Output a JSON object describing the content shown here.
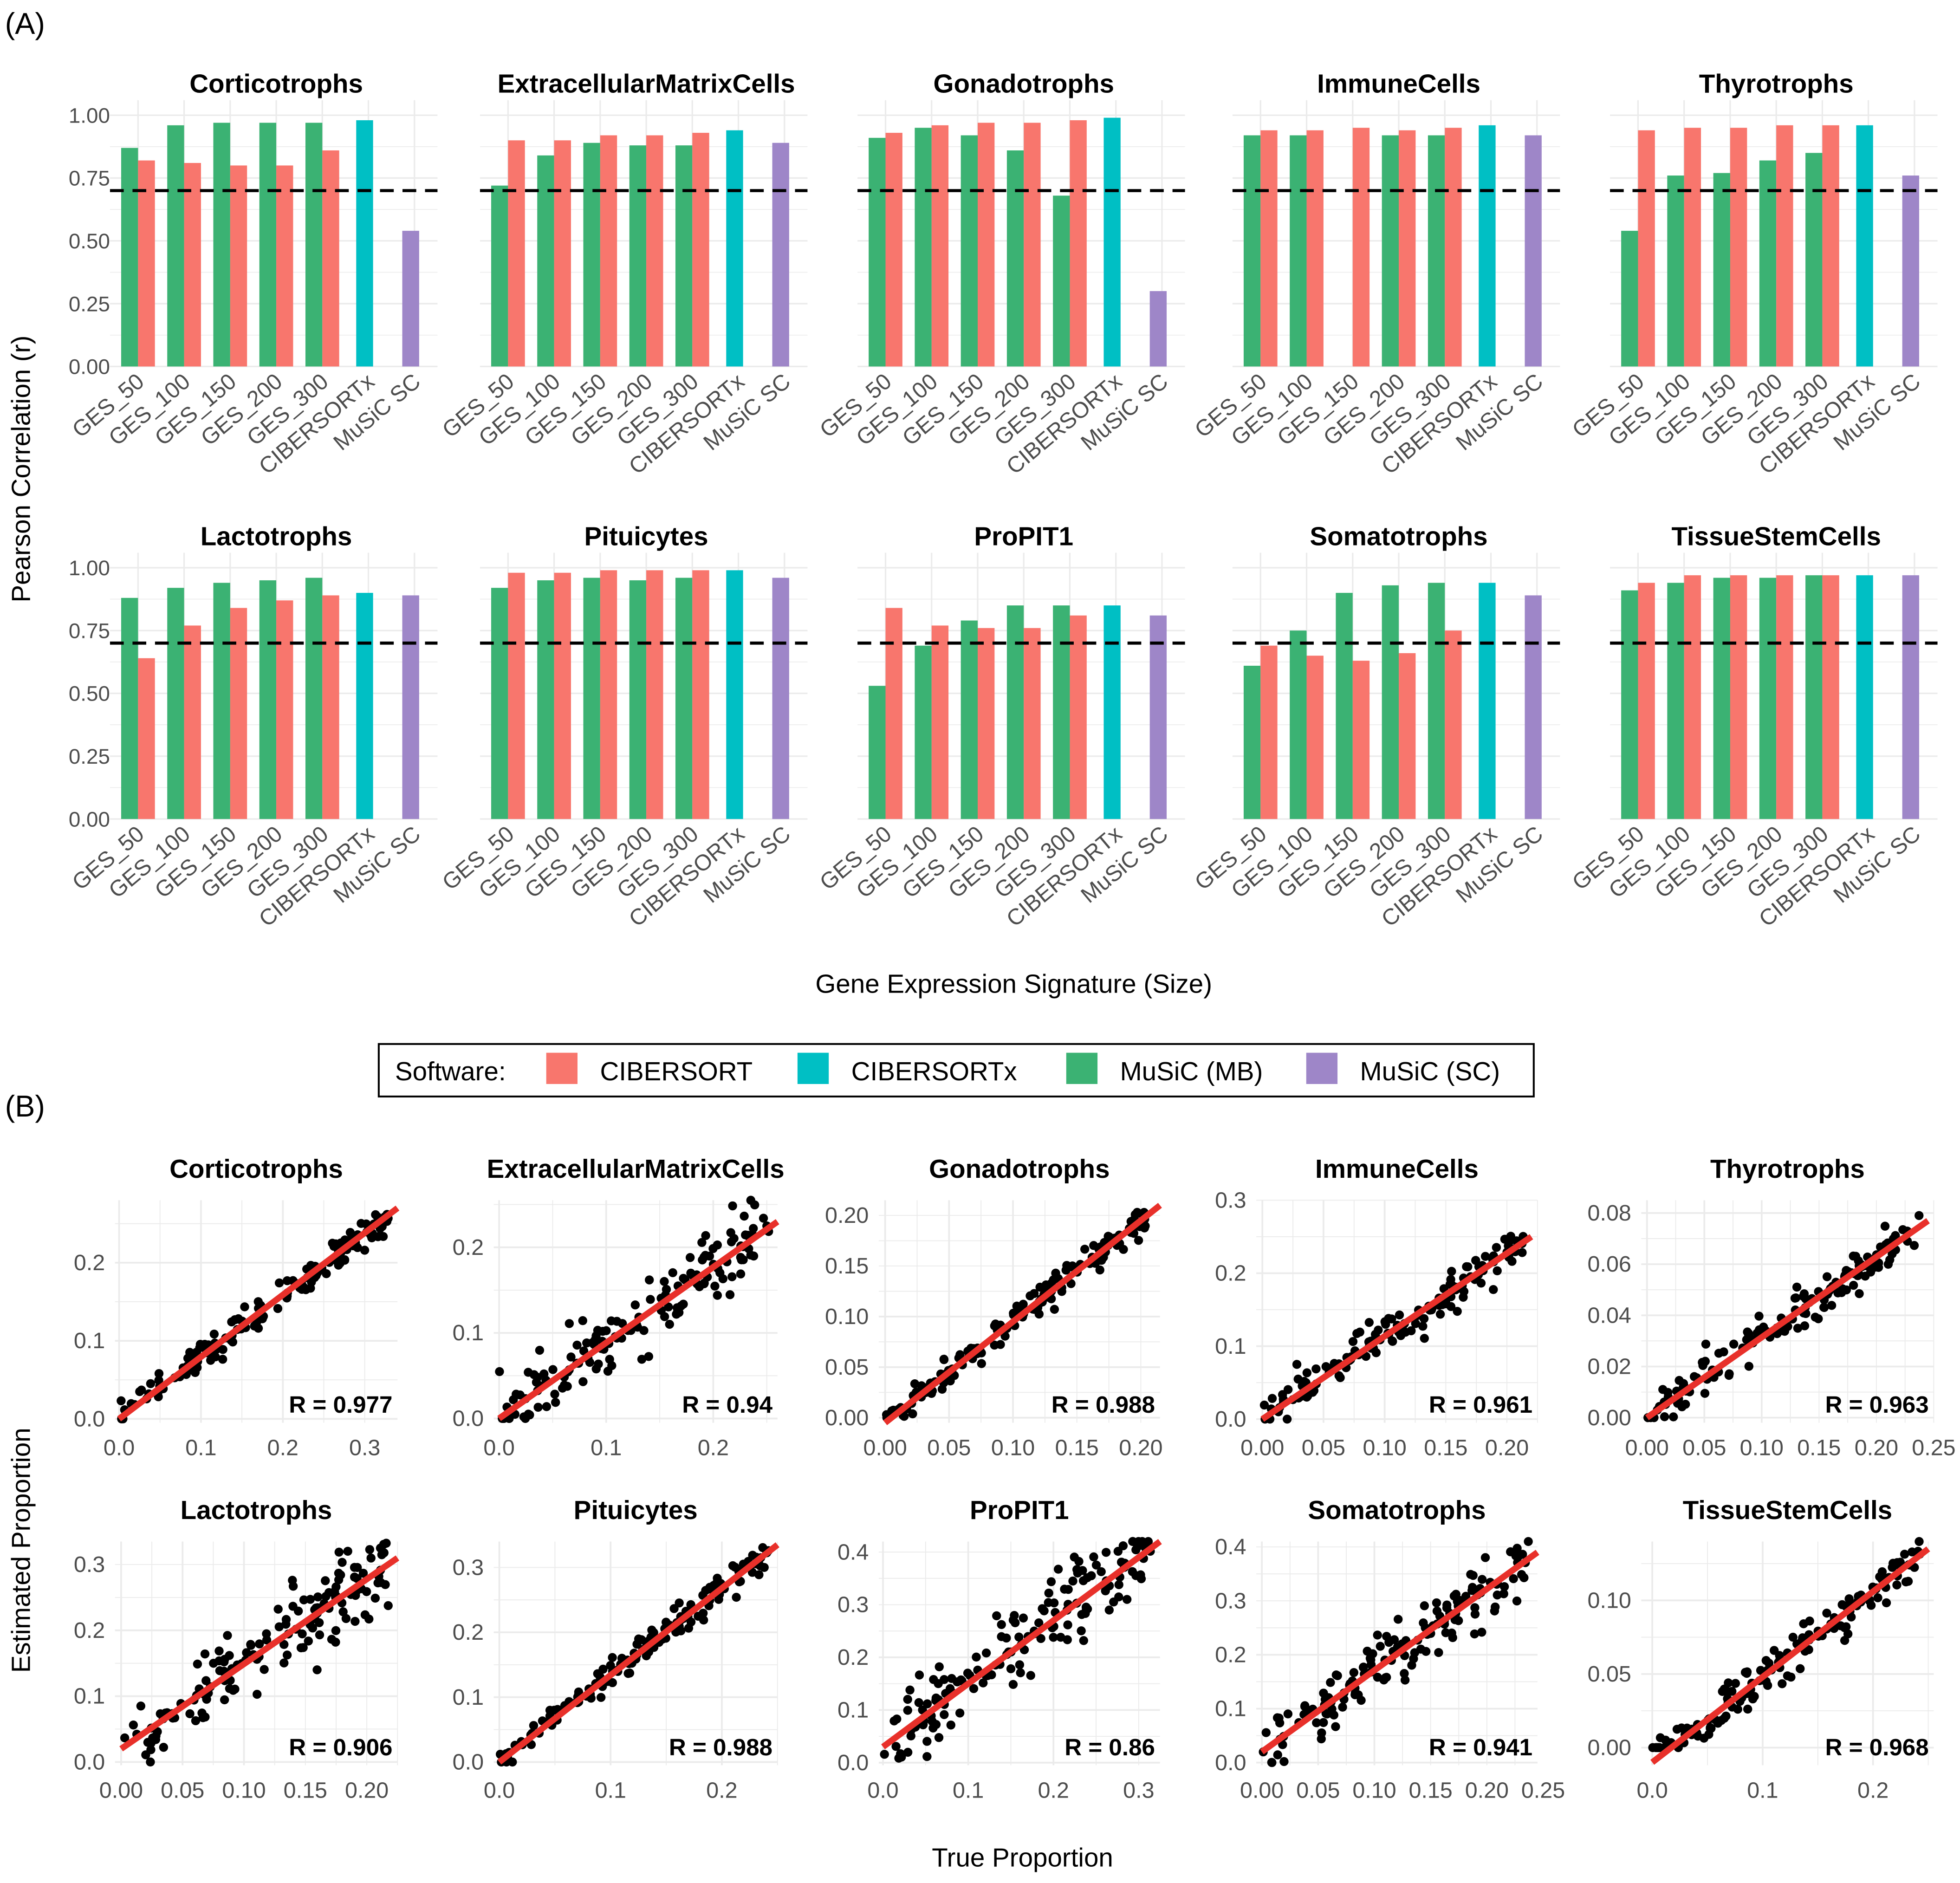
{
  "panel_labels": {
    "a": "(A)",
    "b": "(B)"
  },
  "legend": {
    "title": "Software:",
    "items": [
      {
        "label": "CIBERSORT",
        "color": "#F8766D"
      },
      {
        "label": "CIBERSORTx",
        "color": "#00BFC4"
      },
      {
        "label": "MuSiC (MB)",
        "color": "#3BB273"
      },
      {
        "label": "MuSiC (SC)",
        "color": "#9E86C8"
      }
    ]
  },
  "chart_data": [
    {
      "type": "bar",
      "title": "Panel A",
      "ylabel": "Pearson Correlation (r)",
      "xlabel": "Gene Expression Signature (Size)",
      "ylim": [
        0,
        1
      ],
      "yticks": [
        "0.00",
        "0.25",
        "0.50",
        "0.75",
        "1.00"
      ],
      "threshold": 0.7,
      "categories": [
        "GES_50",
        "GES_100",
        "GES_150",
        "GES_200",
        "GES_300",
        "CIBERSORTx",
        "MuSiC SC"
      ],
      "facets": [
        {
          "title": "Corticotrophs",
          "musicMB": [
            0.87,
            0.96,
            0.97,
            0.97,
            0.97
          ],
          "cibersort": [
            0.82,
            0.81,
            0.8,
            0.8,
            0.86
          ],
          "cibersortx": 0.98,
          "musicSC": 0.54
        },
        {
          "title": "ExtracellularMatrixCells",
          "musicMB": [
            0.72,
            0.84,
            0.89,
            0.88,
            0.88
          ],
          "cibersort": [
            0.9,
            0.9,
            0.92,
            0.92,
            0.93
          ],
          "cibersortx": 0.94,
          "musicSC": 0.89
        },
        {
          "title": "Gonadotrophs",
          "musicMB": [
            0.91,
            0.95,
            0.92,
            0.86,
            0.68
          ],
          "cibersort": [
            0.93,
            0.96,
            0.97,
            0.97,
            0.98
          ],
          "cibersortx": 0.99,
          "musicSC": 0.3
        },
        {
          "title": "ImmuneCells",
          "musicMB": [
            0.92,
            0.92,
            null,
            0.92,
            0.92
          ],
          "cibersort": [
            0.94,
            0.94,
            0.95,
            0.94,
            0.95
          ],
          "cibersortx": 0.96,
          "musicSC": 0.92
        },
        {
          "title": "Thyrotrophs",
          "musicMB": [
            0.54,
            0.76,
            0.77,
            0.82,
            0.85
          ],
          "cibersort": [
            0.94,
            0.95,
            0.95,
            0.96,
            0.96
          ],
          "cibersortx": 0.96,
          "musicSC": 0.76
        },
        {
          "title": "Lactotrophs",
          "musicMB": [
            0.88,
            0.92,
            0.94,
            0.95,
            0.96
          ],
          "cibersort": [
            0.64,
            0.77,
            0.84,
            0.87,
            0.89
          ],
          "cibersortx": 0.9,
          "musicSC": 0.89
        },
        {
          "title": "Pituicytes",
          "musicMB": [
            0.92,
            0.95,
            0.96,
            0.95,
            0.96
          ],
          "cibersort": [
            0.98,
            0.98,
            0.99,
            0.99,
            0.99
          ],
          "cibersortx": 0.99,
          "musicSC": 0.96
        },
        {
          "title": "ProPIT1",
          "musicMB": [
            0.53,
            0.69,
            0.79,
            0.85,
            0.85
          ],
          "cibersort": [
            0.84,
            0.77,
            0.76,
            0.76,
            0.81
          ],
          "cibersortx": 0.85,
          "musicSC": 0.81
        },
        {
          "title": "Somatotrophs",
          "musicMB": [
            0.61,
            0.75,
            0.9,
            0.93,
            0.94
          ],
          "cibersort": [
            0.69,
            0.65,
            0.63,
            0.66,
            0.75
          ],
          "cibersortx": 0.94,
          "musicSC": 0.89
        },
        {
          "title": "TissueStemCells",
          "musicMB": [
            0.91,
            0.94,
            0.96,
            0.96,
            0.97
          ],
          "cibersort": [
            0.94,
            0.97,
            0.97,
            0.97,
            0.97
          ],
          "cibersortx": 0.97,
          "musicSC": 0.97
        }
      ]
    },
    {
      "type": "scatter",
      "title": "Panel B",
      "xlabel": "True Proportion",
      "ylabel": "Estimated Proportion",
      "facets": [
        {
          "title": "Corticotrophs",
          "r_label": "R = 0.977",
          "xlim": [
            -0.005,
            0.34
          ],
          "ylim": [
            -0.005,
            0.28
          ],
          "xticks": [
            0,
            0.1,
            0.2,
            0.3
          ],
          "xtick_labels": [
            "0.0",
            "0.1",
            "0.2",
            "0.3"
          ],
          "yticks": [
            0,
            0.1,
            0.2
          ],
          "ytick_labels": [
            "0.0",
            "0.1",
            "0.2"
          ],
          "fit": [
            [
              0,
              0
            ],
            [
              0.34,
              0.27
            ]
          ],
          "noise": 0.01
        },
        {
          "title": "ExtracellularMatrixCells",
          "r_label": "R = 0.94",
          "xlim": [
            -0.005,
            0.26
          ],
          "ylim": [
            -0.005,
            0.255
          ],
          "xticks": [
            0,
            0.1,
            0.2
          ],
          "xtick_labels": [
            "0.0",
            "0.1",
            "0.2"
          ],
          "yticks": [
            0,
            0.1,
            0.2
          ],
          "ytick_labels": [
            "0.0",
            "0.1",
            "0.2"
          ],
          "fit": [
            [
              0,
              0
            ],
            [
              0.26,
              0.23
            ]
          ],
          "noise": 0.02
        },
        {
          "title": "Gonadotrophs",
          "r_label": "R = 0.988",
          "xlim": [
            -0.005,
            0.215
          ],
          "ylim": [
            -0.005,
            0.215
          ],
          "xticks": [
            0,
            0.05,
            0.1,
            0.15,
            0.2
          ],
          "xtick_labels": [
            "0.00",
            "0.05",
            "0.10",
            "0.15",
            "0.20"
          ],
          "yticks": [
            0,
            0.05,
            0.1,
            0.15,
            0.2
          ],
          "ytick_labels": [
            "0.00",
            "0.05",
            "0.10",
            "0.15",
            "0.20"
          ],
          "fit": [
            [
              0,
              -0.005
            ],
            [
              0.215,
              0.21
            ]
          ],
          "noise": 0.007
        },
        {
          "title": "ImmuneCells",
          "r_label": "R = 0.961",
          "xlim": [
            -0.005,
            0.225
          ],
          "ylim": [
            -0.005,
            0.3
          ],
          "xticks": [
            0,
            0.05,
            0.1,
            0.15,
            0.2
          ],
          "xtick_labels": [
            "0.00",
            "0.05",
            "0.10",
            "0.15",
            "0.20"
          ],
          "yticks": [
            0,
            0.1,
            0.2,
            0.3
          ],
          "ytick_labels": [
            "0.0",
            "0.1",
            "0.2",
            "0.3"
          ],
          "fit": [
            [
              0,
              0
            ],
            [
              0.22,
              0.25
            ]
          ],
          "noise": 0.014
        },
        {
          "title": "Thyrotrophs",
          "r_label": "R = 0.963",
          "xlim": [
            -0.005,
            0.25
          ],
          "ylim": [
            -0.002,
            0.085
          ],
          "xticks": [
            0,
            0.05,
            0.1,
            0.15,
            0.2,
            0.25
          ],
          "xtick_labels": [
            "0.00",
            "0.05",
            "0.10",
            "0.15",
            "0.20",
            "0.25"
          ],
          "yticks": [
            0,
            0.02,
            0.04,
            0.06,
            0.08
          ],
          "ytick_labels": [
            "0.00",
            "0.02",
            "0.04",
            "0.06",
            "0.08"
          ],
          "fit": [
            [
              0,
              0
            ],
            [
              0.245,
              0.077
            ]
          ],
          "noise": 0.004
        },
        {
          "title": "Lactotrophs",
          "r_label": "R = 0.906",
          "xlim": [
            -0.005,
            0.225
          ],
          "ylim": [
            -0.005,
            0.335
          ],
          "xticks": [
            0,
            0.05,
            0.1,
            0.15,
            0.2
          ],
          "xtick_labels": [
            "0.00",
            "0.05",
            "0.10",
            "0.15",
            "0.20"
          ],
          "yticks": [
            0,
            0.1,
            0.2,
            0.3
          ],
          "ytick_labels": [
            "0.0",
            "0.1",
            "0.2",
            "0.3"
          ],
          "fit": [
            [
              0,
              0.02
            ],
            [
              0.225,
              0.31
            ]
          ],
          "noise": 0.03
        },
        {
          "title": "Pituicytes",
          "r_label": "R = 0.988",
          "xlim": [
            -0.005,
            0.25
          ],
          "ylim": [
            -0.005,
            0.34
          ],
          "xticks": [
            0,
            0.1,
            0.2
          ],
          "xtick_labels": [
            "0.0",
            "0.1",
            "0.2"
          ],
          "yticks": [
            0,
            0.1,
            0.2,
            0.3
          ],
          "ytick_labels": [
            "0.0",
            "0.1",
            "0.2",
            "0.3"
          ],
          "fit": [
            [
              0,
              0
            ],
            [
              0.25,
              0.335
            ]
          ],
          "noise": 0.012
        },
        {
          "title": "ProPIT1",
          "r_label": "R = 0.86",
          "xlim": [
            -0.005,
            0.325
          ],
          "ylim": [
            -0.005,
            0.42
          ],
          "xticks": [
            0,
            0.1,
            0.2,
            0.3
          ],
          "xtick_labels": [
            "0.0",
            "0.1",
            "0.2",
            "0.3"
          ],
          "yticks": [
            0,
            0.1,
            0.2,
            0.3,
            0.4
          ],
          "ytick_labels": [
            "0.0",
            "0.1",
            "0.2",
            "0.3",
            "0.4"
          ],
          "fit": [
            [
              0,
              0.03
            ],
            [
              0.325,
              0.42
            ]
          ],
          "noise": 0.04
        },
        {
          "title": "Somatotrophs",
          "r_label": "R = 0.941",
          "xlim": [
            -0.005,
            0.245
          ],
          "ylim": [
            -0.005,
            0.41
          ],
          "xticks": [
            0,
            0.05,
            0.1,
            0.15,
            0.2,
            0.25
          ],
          "xtick_labels": [
            "0.00",
            "0.05",
            "0.10",
            "0.15",
            "0.20",
            "0.25"
          ],
          "yticks": [
            0,
            0.1,
            0.2,
            0.3,
            0.4
          ],
          "ytick_labels": [
            "0.0",
            "0.1",
            "0.2",
            "0.3",
            "0.4"
          ],
          "fit": [
            [
              0,
              0.02
            ],
            [
              0.245,
              0.39
            ]
          ],
          "noise": 0.028
        },
        {
          "title": "TissueStemCells",
          "r_label": "R = 0.968",
          "xlim": [
            -0.01,
            0.255
          ],
          "ylim": [
            -0.012,
            0.14
          ],
          "xticks": [
            0,
            0.1,
            0.2
          ],
          "xtick_labels": [
            "0.0",
            "0.1",
            "0.2"
          ],
          "yticks": [
            0,
            0.05,
            0.1
          ],
          "ytick_labels": [
            "0.00",
            "0.05",
            "0.10"
          ],
          "fit": [
            [
              0,
              -0.01
            ],
            [
              0.25,
              0.135
            ]
          ],
          "noise": 0.007
        }
      ]
    }
  ]
}
